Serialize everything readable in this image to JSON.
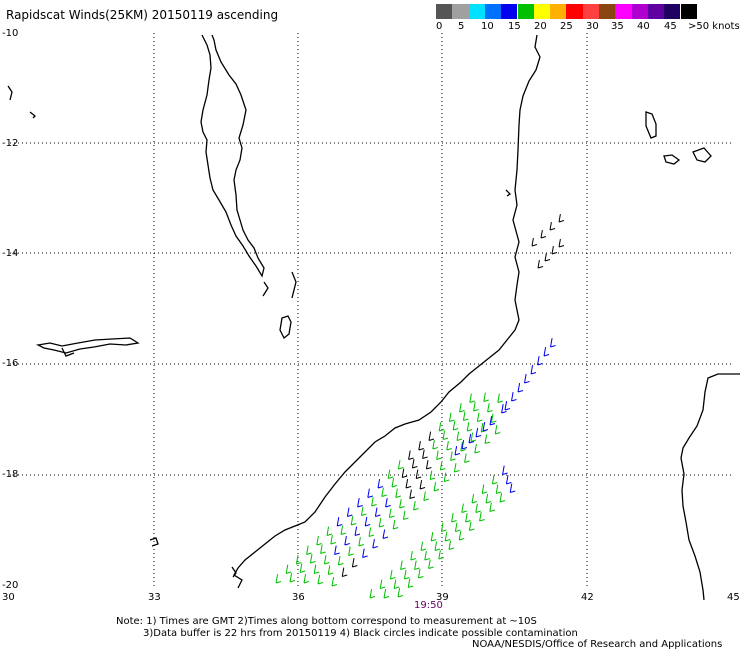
{
  "title": "Rapidscat Winds(25KM) 20150119 ascending",
  "legend": {
    "labels": [
      "0",
      "5",
      "10",
      "15",
      "20",
      "25",
      "30",
      "35",
      "40",
      "45",
      ">50 knots"
    ],
    "colors": [
      "#555555",
      "#a0a0a0",
      "#00e0ff",
      "#0070ff",
      "#0000ee",
      "#00c000",
      "#ffff00",
      "#ffb000",
      "#ff0000",
      "#ff4040",
      "#8b4513",
      "#ff00ff",
      "#b000d0",
      "#6000a0",
      "#200060",
      "#000000"
    ]
  },
  "axes": {
    "lat_labels": [
      "-10",
      "-12",
      "-14",
      "-16",
      "-18",
      "-20"
    ],
    "lon_labels": [
      "30",
      "33",
      "36",
      "39",
      "42",
      "45"
    ]
  },
  "time_label": "19:50",
  "notes": {
    "line1": "Note: 1) Times are GMT 2)Times along bottom correspond to measurement at ~10S",
    "line2": "3)Data buffer is 22 hrs from 20150119 4) Black circles indicate possible contamination",
    "line3": "NOAA/NESDIS/Office of Research and Applications"
  },
  "barb_colors": {
    "light": "#00c000",
    "moderate": "#0000ee",
    "flagged": "#000000"
  }
}
